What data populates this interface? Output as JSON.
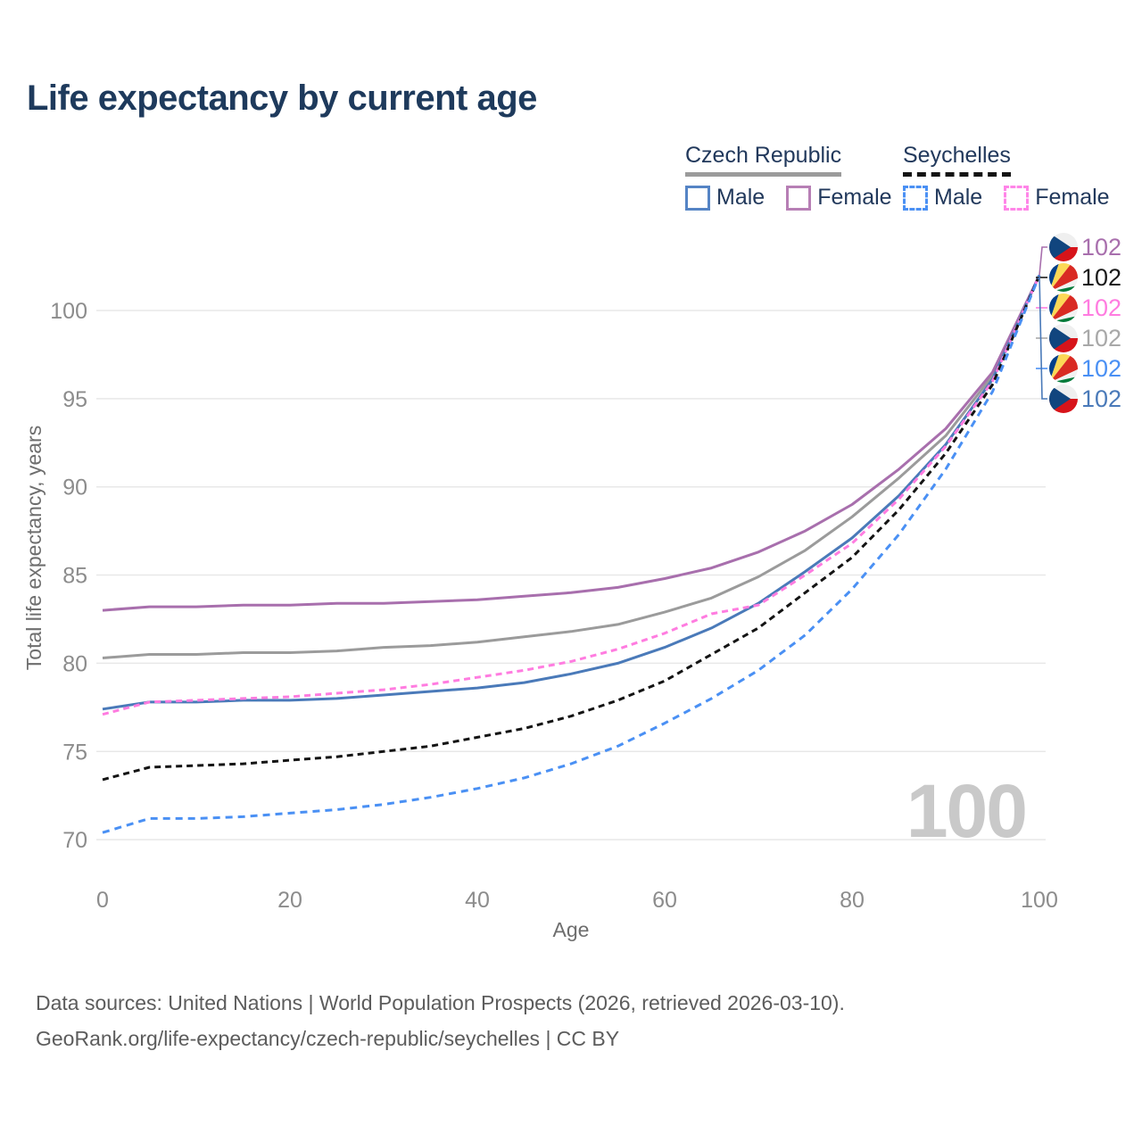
{
  "title": "Life expectancy by current age",
  "legend": {
    "groups": [
      {
        "name": "Czech Republic",
        "underline_style": "solid",
        "underline_color": "#9b9b9b",
        "items": [
          {
            "label": "Male",
            "color": "#5584c5",
            "dashed": false
          },
          {
            "label": "Female",
            "color": "#b77fb5",
            "dashed": false
          }
        ]
      },
      {
        "name": "Seychelles",
        "underline_style": "dashed",
        "underline_color": "#141414",
        "items": [
          {
            "label": "Male",
            "color": "#4a90f4",
            "dashed": true
          },
          {
            "label": "Female",
            "color": "#ff85e8",
            "dashed": true
          }
        ]
      }
    ]
  },
  "chart_data": {
    "type": "line",
    "title": "Life expectancy by current age",
    "xlabel": "Age",
    "ylabel": "Total life expectancy, years",
    "x_ticks": [
      0,
      20,
      40,
      60,
      80,
      100
    ],
    "y_ticks": [
      70,
      75,
      80,
      85,
      90,
      95,
      100
    ],
    "xlim": [
      0,
      100
    ],
    "ylim": [
      69.5,
      103.5
    ],
    "grid": "horizontal-only",
    "gridline_color": "#e8e8e8",
    "age_counter_watermark": "100",
    "watermark_color": "#c9c9c9",
    "ages": [
      0,
      5,
      10,
      15,
      20,
      25,
      30,
      35,
      40,
      45,
      50,
      55,
      60,
      65,
      70,
      75,
      80,
      85,
      90,
      95,
      100
    ],
    "series": [
      {
        "id": "czech-both",
        "name": "Czech Republic (both sexes)",
        "color": "#9b9b9b",
        "dash": null,
        "values": [
          80.3,
          80.5,
          80.5,
          80.6,
          80.6,
          80.7,
          80.9,
          81.0,
          81.2,
          81.5,
          81.8,
          82.2,
          82.9,
          83.7,
          84.9,
          86.4,
          88.3,
          90.5,
          92.9,
          96.3,
          102
        ],
        "end_label": "102"
      },
      {
        "id": "czech-female",
        "name": "Czech Republic Female",
        "color": "#a86fad",
        "dash": null,
        "values": [
          83.0,
          83.2,
          83.2,
          83.3,
          83.3,
          83.4,
          83.4,
          83.5,
          83.6,
          83.8,
          84.0,
          84.3,
          84.8,
          85.4,
          86.3,
          87.5,
          89.0,
          91.0,
          93.3,
          96.5,
          102
        ],
        "end_label": "102"
      },
      {
        "id": "czech-male",
        "name": "Czech Republic Male",
        "color": "#4a7ab9",
        "dash": null,
        "values": [
          77.4,
          77.8,
          77.8,
          77.9,
          77.9,
          78.0,
          78.2,
          78.4,
          78.6,
          78.9,
          79.4,
          80.0,
          80.9,
          82.0,
          83.4,
          85.2,
          87.1,
          89.5,
          92.4,
          96.1,
          102
        ],
        "end_label": "102"
      },
      {
        "id": "seychelles-female",
        "name": "Seychelles Female",
        "color": "#ff7ce0",
        "dash": [
          7,
          5
        ],
        "values": [
          77.1,
          77.8,
          77.9,
          78.0,
          78.1,
          78.3,
          78.5,
          78.8,
          79.2,
          79.6,
          80.1,
          80.8,
          81.7,
          82.8,
          83.3,
          85.0,
          86.8,
          89.3,
          92.3,
          96.0,
          102
        ],
        "end_label": "102"
      },
      {
        "id": "seychelles-both",
        "name": "Seychelles (both sexes)",
        "color": "#141414",
        "dash": [
          7,
          5
        ],
        "values": [
          73.4,
          74.1,
          74.2,
          74.3,
          74.5,
          74.7,
          75.0,
          75.3,
          75.8,
          76.3,
          77.0,
          77.9,
          79.0,
          80.5,
          82.0,
          84.0,
          86.0,
          88.7,
          91.9,
          95.8,
          102
        ],
        "end_label": "102"
      },
      {
        "id": "seychelles-male",
        "name": "Seychelles Male",
        "color": "#4a90f4",
        "dash": [
          8,
          6
        ],
        "values": [
          70.4,
          71.2,
          71.2,
          71.3,
          71.5,
          71.7,
          72.0,
          72.4,
          72.9,
          73.5,
          74.3,
          75.3,
          76.6,
          78.0,
          79.6,
          81.6,
          84.2,
          87.3,
          91.0,
          95.4,
          102
        ],
        "end_label": "102"
      }
    ]
  },
  "right_labels": [
    {
      "flag": "czech",
      "value": "102",
      "color": "#a86fad",
      "series": "czech-female"
    },
    {
      "flag": "seychelles",
      "value": "102",
      "color": "#1a1a1a",
      "series": "seychelles-both"
    },
    {
      "flag": "seychelles",
      "value": "102",
      "color": "#ff7ce0",
      "series": "seychelles-female"
    },
    {
      "flag": "czech",
      "value": "102",
      "color": "#a8a8a8",
      "series": "czech-both"
    },
    {
      "flag": "seychelles",
      "value": "102",
      "color": "#4a90f4",
      "series": "seychelles-male"
    },
    {
      "flag": "czech",
      "value": "102",
      "color": "#4a7ab9",
      "series": "czech-male"
    }
  ],
  "footer": {
    "line1": "Data sources: United Nations | World Population Prospects (2026, retrieved 2026-03-10).",
    "line2": "GeoRank.org/life-expectancy/czech-republic/seychelles | CC BY"
  }
}
